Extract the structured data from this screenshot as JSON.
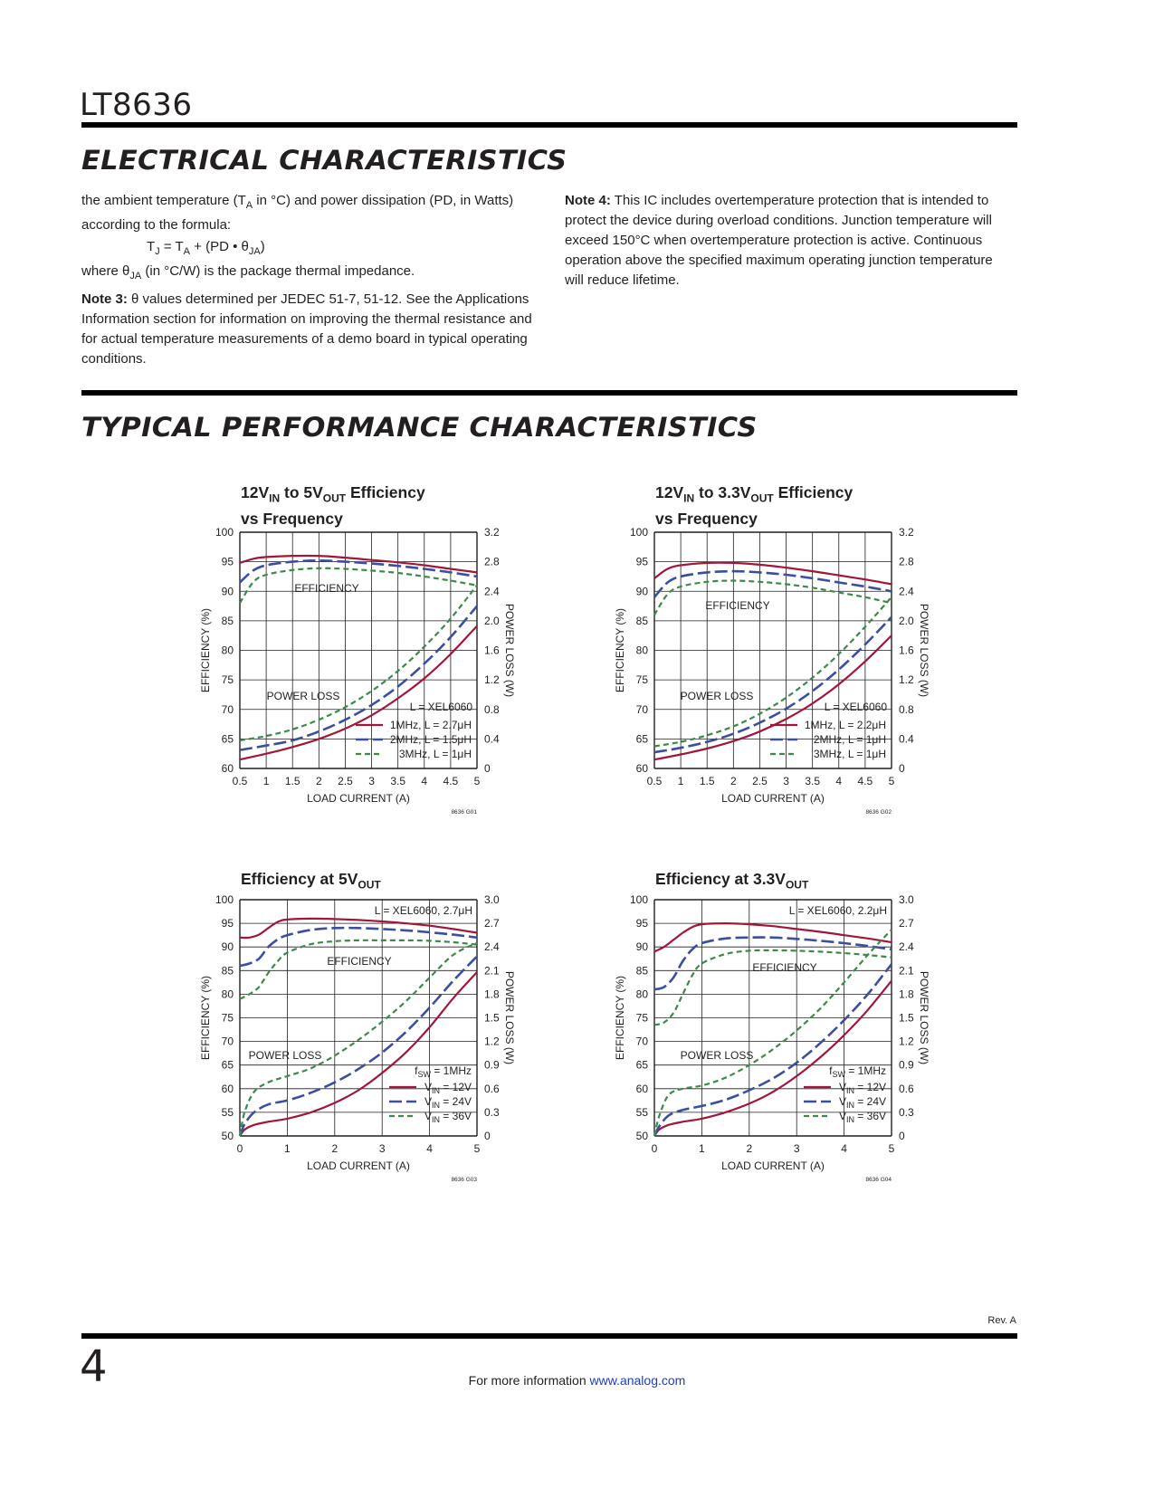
{
  "header": {
    "part_number": "LT8636"
  },
  "sections": {
    "electrical": "ELECTRICAL CHARACTERISTICS",
    "typical": "TYPICAL PERFORMANCE CHARACTERISTICS"
  },
  "notes": {
    "left_p1": "the ambient temperature (TA in °C) and power dissipation (PD, in Watts) according to the formula:",
    "formula": "TJ = TA + (PD • θJA)",
    "left_p2": "where θJA (in °C/W) is the package thermal impedance.",
    "note3_label": "Note 3:",
    "note3_text": " θ values determined per JEDEC 51-7, 51-12. See the Applications Information section for information on improving the thermal resistance and for actual temperature measurements of a demo board in typical operating conditions.",
    "note4_label": "Note 4:",
    "note4_text": " This IC includes overtemperature protection that is intended to protect the device during overload conditions. Junction temperature will exceed 150°C when overtemperature protection is active. Continuous operation above the specified maximum operating junction temperature will reduce lifetime."
  },
  "colors": {
    "red": "#a0173a",
    "blue": "#3a4f9f",
    "green": "#3a8a48",
    "grid": "#231f20"
  },
  "chart_data": [
    {
      "type": "line",
      "title": "12VIN to 5VOUT Efficiency vs Frequency",
      "xlabel": "LOAD CURRENT (A)",
      "ylabel": "EFFICIENCY (%)",
      "y2label": "POWER LOSS (W)",
      "xlim": [
        0.5,
        5
      ],
      "ylim": [
        60,
        100
      ],
      "y2lim": [
        0,
        3.2
      ],
      "xticks": [
        "0.5",
        "1",
        "1.5",
        "2",
        "2.5",
        "3",
        "3.5",
        "4",
        "4.5",
        "5"
      ],
      "yticks": [
        "60",
        "65",
        "70",
        "75",
        "80",
        "85",
        "90",
        "95",
        "100"
      ],
      "y2ticks": [
        "0",
        "0.4",
        "0.8",
        "1.2",
        "1.6",
        "2.0",
        "2.4",
        "2.8",
        "3.2"
      ],
      "legend_header": "L = XEL6060",
      "legend": [
        "1MHz, L = 2.7μH",
        "2MHz, L = 1.5μH",
        "3MHz, L = 1μH"
      ],
      "labels": {
        "efficiency": "EFFICIENCY",
        "power_loss": "POWER LOSS"
      },
      "code": "8636 G01",
      "series": [
        {
          "name": "1MHz, L = 2.7μH",
          "kind": "efficiency",
          "x": [
            0.5,
            0.75,
            1,
            1.5,
            2,
            2.5,
            3,
            3.5,
            4,
            4.5,
            5
          ],
          "y": [
            94.8,
            95.5,
            95.8,
            96,
            96,
            95.7,
            95.3,
            94.9,
            94.4,
            93.8,
            93.2
          ]
        },
        {
          "name": "2MHz, L = 1.5μH",
          "kind": "efficiency",
          "x": [
            0.5,
            0.75,
            1,
            1.5,
            2,
            2.5,
            3,
            3.5,
            4,
            4.5,
            5
          ],
          "y": [
            91.5,
            93.5,
            94.4,
            95,
            95.2,
            95,
            94.7,
            94.3,
            93.8,
            93.2,
            92.5
          ]
        },
        {
          "name": "3MHz, L = 1μH",
          "kind": "efficiency",
          "x": [
            0.5,
            0.75,
            1,
            1.5,
            2,
            2.5,
            3,
            3.5,
            4,
            4.5,
            5
          ],
          "y": [
            88,
            91.5,
            92.8,
            93.6,
            93.9,
            93.8,
            93.5,
            93.1,
            92.5,
            91.8,
            91
          ]
        },
        {
          "name": "1MHz, L = 2.7μH",
          "kind": "loss",
          "x": [
            0.5,
            1,
            1.5,
            2,
            2.5,
            3,
            3.5,
            4,
            4.5,
            5
          ],
          "y": [
            0.12,
            0.2,
            0.29,
            0.4,
            0.54,
            0.72,
            0.95,
            1.22,
            1.55,
            1.93
          ]
        },
        {
          "name": "2MHz, L = 1.5μH",
          "kind": "loss",
          "x": [
            0.5,
            1,
            1.5,
            2,
            2.5,
            3,
            3.5,
            4,
            4.5,
            5
          ],
          "y": [
            0.25,
            0.31,
            0.38,
            0.5,
            0.66,
            0.86,
            1.11,
            1.42,
            1.78,
            2.2
          ]
        },
        {
          "name": "3MHz, L = 1μH",
          "kind": "loss",
          "x": [
            0.5,
            1,
            1.5,
            2,
            2.5,
            3,
            3.5,
            4,
            4.5,
            5
          ],
          "y": [
            0.38,
            0.44,
            0.53,
            0.66,
            0.83,
            1.05,
            1.32,
            1.65,
            2.03,
            2.48
          ]
        }
      ]
    },
    {
      "type": "line",
      "title": "12VIN to 3.3VOUT Efficiency vs Frequency",
      "xlabel": "LOAD CURRENT (A)",
      "ylabel": "EFFICIENCY (%)",
      "y2label": "POWER LOSS (W)",
      "xlim": [
        0.5,
        5
      ],
      "ylim": [
        60,
        100
      ],
      "y2lim": [
        0,
        3.2
      ],
      "xticks": [
        "0.5",
        "1",
        "1.5",
        "2",
        "2.5",
        "3",
        "3.5",
        "4",
        "4.5",
        "5"
      ],
      "yticks": [
        "60",
        "65",
        "70",
        "75",
        "80",
        "85",
        "90",
        "95",
        "100"
      ],
      "y2ticks": [
        "0",
        "0.4",
        "0.8",
        "1.2",
        "1.6",
        "2.0",
        "2.4",
        "2.8",
        "3.2"
      ],
      "legend_header": "L = XEL6060",
      "legend": [
        "1MHz, L = 2.2μH",
        "2MHz, L = 1μH",
        "3MHz, L = 1μH"
      ],
      "labels": {
        "efficiency": "EFFICIENCY",
        "power_loss": "POWER LOSS"
      },
      "code": "8636 G02",
      "series": [
        {
          "name": "1MHz, L = 2.2μH",
          "kind": "efficiency",
          "x": [
            0.5,
            0.75,
            1,
            1.5,
            2,
            2.5,
            3,
            3.5,
            4,
            4.5,
            5
          ],
          "y": [
            92.2,
            93.8,
            94.4,
            94.8,
            94.8,
            94.5,
            94,
            93.4,
            92.7,
            92,
            91.2
          ]
        },
        {
          "name": "2MHz, L = 1μH",
          "kind": "efficiency",
          "x": [
            0.5,
            0.75,
            1,
            1.5,
            2,
            2.5,
            3,
            3.5,
            4,
            4.5,
            5
          ],
          "y": [
            89,
            91.5,
            92.5,
            93.2,
            93.4,
            93.2,
            92.8,
            92.2,
            91.5,
            90.8,
            90
          ]
        },
        {
          "name": "3MHz, L = 1μH",
          "kind": "efficiency",
          "x": [
            0.5,
            0.75,
            1,
            1.5,
            2,
            2.5,
            3,
            3.5,
            4,
            4.5,
            5
          ],
          "y": [
            86,
            89.5,
            90.8,
            91.6,
            91.8,
            91.6,
            91.2,
            90.6,
            89.8,
            89,
            88
          ]
        },
        {
          "name": "1MHz, L = 2.2μH",
          "kind": "loss",
          "x": [
            0.5,
            1,
            1.5,
            2,
            2.5,
            3,
            3.5,
            4,
            4.5,
            5
          ],
          "y": [
            0.12,
            0.19,
            0.27,
            0.37,
            0.5,
            0.67,
            0.88,
            1.14,
            1.45,
            1.8
          ]
        },
        {
          "name": "2MHz, L = 1μH",
          "kind": "loss",
          "x": [
            0.5,
            1,
            1.5,
            2,
            2.5,
            3,
            3.5,
            4,
            4.5,
            5
          ],
          "y": [
            0.22,
            0.28,
            0.36,
            0.47,
            0.62,
            0.81,
            1.05,
            1.34,
            1.68,
            2.05
          ]
        },
        {
          "name": "3MHz, L = 1μH",
          "kind": "loss",
          "x": [
            0.5,
            1,
            1.5,
            2,
            2.5,
            3,
            3.5,
            4,
            4.5,
            5
          ],
          "y": [
            0.3,
            0.36,
            0.45,
            0.57,
            0.74,
            0.96,
            1.23,
            1.55,
            1.92,
            2.32
          ]
        }
      ]
    },
    {
      "type": "line",
      "title": "Efficiency at 5VOUT",
      "xlabel": "LOAD CURRENT (A)",
      "ylabel": "EFFICIENCY (%)",
      "y2label": "POWER LOSS (W)",
      "xlim": [
        0,
        5
      ],
      "ylim": [
        50,
        100
      ],
      "y2lim": [
        0,
        3.0
      ],
      "xticks": [
        "0",
        "1",
        "2",
        "3",
        "4",
        "5"
      ],
      "yticks": [
        "50",
        "55",
        "60",
        "65",
        "70",
        "75",
        "80",
        "85",
        "90",
        "95",
        "100"
      ],
      "y2ticks": [
        "0",
        "0.3",
        "0.6",
        "0.9",
        "1.2",
        "1.5",
        "1.8",
        "2.1",
        "2.4",
        "2.7",
        "3.0"
      ],
      "legend_header": "fSW = 1MHz",
      "legend": [
        "VIN = 12V",
        "VIN = 24V",
        "VIN = 36V"
      ],
      "corner_label": "L = XEL6060, 2.7μH",
      "labels": {
        "efficiency": "EFFICIENCY",
        "power_loss": "POWER LOSS"
      },
      "code": "8636 G03",
      "series": [
        {
          "name": "VIN = 12V",
          "kind": "efficiency",
          "x": [
            0,
            0.2,
            0.4,
            0.6,
            0.8,
            1,
            1.5,
            2,
            2.5,
            3,
            3.5,
            4,
            4.5,
            5
          ],
          "y": [
            92,
            92,
            92.6,
            94,
            95.3,
            95.8,
            96,
            95.9,
            95.7,
            95.4,
            95,
            94.5,
            93.8,
            93
          ]
        },
        {
          "name": "VIN = 24V",
          "kind": "efficiency",
          "x": [
            0,
            0.2,
            0.4,
            0.6,
            0.8,
            1,
            1.5,
            2,
            2.5,
            3,
            3.5,
            4,
            4.5,
            5
          ],
          "y": [
            86,
            86.5,
            87.5,
            90,
            91.6,
            92.5,
            93.6,
            94,
            94,
            93.8,
            93.5,
            93.1,
            92.6,
            92
          ]
        },
        {
          "name": "VIN = 36V",
          "kind": "efficiency",
          "x": [
            0,
            0.2,
            0.4,
            0.6,
            0.8,
            1,
            1.5,
            2,
            2.5,
            3,
            3.5,
            4,
            4.5,
            5
          ],
          "y": [
            79,
            80,
            81.5,
            84.5,
            87,
            88.8,
            90.6,
            91.2,
            91.4,
            91.4,
            91.4,
            91.3,
            91,
            90.5
          ]
        },
        {
          "name": "VIN = 12V",
          "kind": "loss",
          "x": [
            0,
            0.1,
            0.3,
            0.6,
            1,
            1.5,
            2,
            2.5,
            3,
            3.5,
            4,
            4.5,
            5
          ],
          "y": [
            0,
            0.08,
            0.14,
            0.18,
            0.22,
            0.3,
            0.42,
            0.58,
            0.8,
            1.06,
            1.38,
            1.75,
            2.08
          ]
        },
        {
          "name": "VIN = 24V",
          "kind": "loss",
          "x": [
            0,
            0.1,
            0.3,
            0.6,
            1,
            1.5,
            2,
            2.5,
            3,
            3.5,
            4,
            4.5,
            5
          ],
          "y": [
            0,
            0.15,
            0.3,
            0.4,
            0.45,
            0.55,
            0.68,
            0.85,
            1.06,
            1.32,
            1.63,
            1.97,
            2.28
          ]
        },
        {
          "name": "VIN = 36V",
          "kind": "loss",
          "x": [
            0,
            0.1,
            0.3,
            0.6,
            1,
            1.5,
            2,
            2.5,
            3,
            3.5,
            4,
            4.5,
            5
          ],
          "y": [
            0,
            0.3,
            0.56,
            0.68,
            0.76,
            0.86,
            1.02,
            1.22,
            1.45,
            1.71,
            2.01,
            2.3,
            2.45
          ]
        }
      ]
    },
    {
      "type": "line",
      "title": "Efficiency at 3.3VOUT",
      "xlabel": "LOAD CURRENT (A)",
      "ylabel": "EFFICIENCY (%)",
      "y2label": "POWER LOSS (W)",
      "xlim": [
        0,
        5
      ],
      "ylim": [
        50,
        100
      ],
      "y2lim": [
        0,
        3.0
      ],
      "xticks": [
        "0",
        "1",
        "2",
        "3",
        "4",
        "5"
      ],
      "yticks": [
        "50",
        "55",
        "60",
        "65",
        "70",
        "75",
        "80",
        "85",
        "90",
        "95",
        "100"
      ],
      "y2ticks": [
        "0",
        "0.3",
        "0.6",
        "0.9",
        "1.2",
        "1.5",
        "1.8",
        "2.1",
        "2.4",
        "2.7",
        "3.0"
      ],
      "legend_header": "fSW = 1MHz",
      "legend": [
        "VIN = 12V",
        "VIN = 24V",
        "VIN = 36V"
      ],
      "corner_label": "L = XEL6060, 2.2μH",
      "labels": {
        "efficiency": "EFFICIENCY",
        "power_loss": "POWER LOSS"
      },
      "code": "8636 G04",
      "series": [
        {
          "name": "VIN = 12V",
          "kind": "efficiency",
          "x": [
            0,
            0.2,
            0.4,
            0.6,
            0.8,
            1,
            1.5,
            2,
            2.5,
            3,
            3.5,
            4,
            4.5,
            5
          ],
          "y": [
            89,
            90,
            91.5,
            93,
            94.2,
            94.8,
            95,
            94.8,
            94.4,
            93.8,
            93.2,
            92.5,
            91.8,
            91
          ]
        },
        {
          "name": "VIN = 24V",
          "kind": "efficiency",
          "x": [
            0,
            0.2,
            0.4,
            0.6,
            0.8,
            1,
            1.5,
            2,
            2.5,
            3,
            3.5,
            4,
            4.5,
            5
          ],
          "y": [
            81,
            81.5,
            83.5,
            87,
            89.5,
            90.8,
            91.8,
            92,
            92,
            91.7,
            91.3,
            90.8,
            90.2,
            89.5
          ]
        },
        {
          "name": "VIN = 36V",
          "kind": "efficiency",
          "x": [
            0,
            0.2,
            0.4,
            0.6,
            0.8,
            1,
            1.5,
            2,
            2.5,
            3,
            3.5,
            4,
            4.5,
            5
          ],
          "y": [
            73.5,
            74,
            76,
            80,
            84,
            86.5,
            88.5,
            89.2,
            89.3,
            89.2,
            89,
            88.7,
            88.3,
            87.8
          ]
        },
        {
          "name": "VIN = 12V",
          "kind": "loss",
          "x": [
            0,
            0.1,
            0.3,
            0.6,
            1,
            1.5,
            2,
            2.5,
            3,
            3.5,
            4,
            4.5,
            5
          ],
          "y": [
            0,
            0.08,
            0.14,
            0.18,
            0.22,
            0.3,
            0.41,
            0.56,
            0.76,
            1.0,
            1.28,
            1.6,
            1.97
          ]
        },
        {
          "name": "VIN = 24V",
          "kind": "loss",
          "x": [
            0,
            0.1,
            0.3,
            0.6,
            1,
            1.5,
            2,
            2.5,
            3,
            3.5,
            4,
            4.5,
            5
          ],
          "y": [
            0,
            0.12,
            0.26,
            0.33,
            0.38,
            0.46,
            0.58,
            0.73,
            0.93,
            1.18,
            1.47,
            1.8,
            2.18
          ]
        },
        {
          "name": "VIN = 36V",
          "kind": "loss",
          "x": [
            0,
            0.1,
            0.3,
            0.6,
            1,
            1.5,
            2,
            2.5,
            3,
            3.5,
            4,
            4.5,
            5
          ],
          "y": [
            0,
            0.25,
            0.52,
            0.6,
            0.64,
            0.74,
            0.9,
            1.1,
            1.34,
            1.62,
            1.95,
            2.3,
            2.62
          ]
        }
      ]
    }
  ],
  "footer": {
    "revision": "Rev. A",
    "page_number": "4",
    "more_info": "For more information ",
    "link": "www.analog.com"
  }
}
